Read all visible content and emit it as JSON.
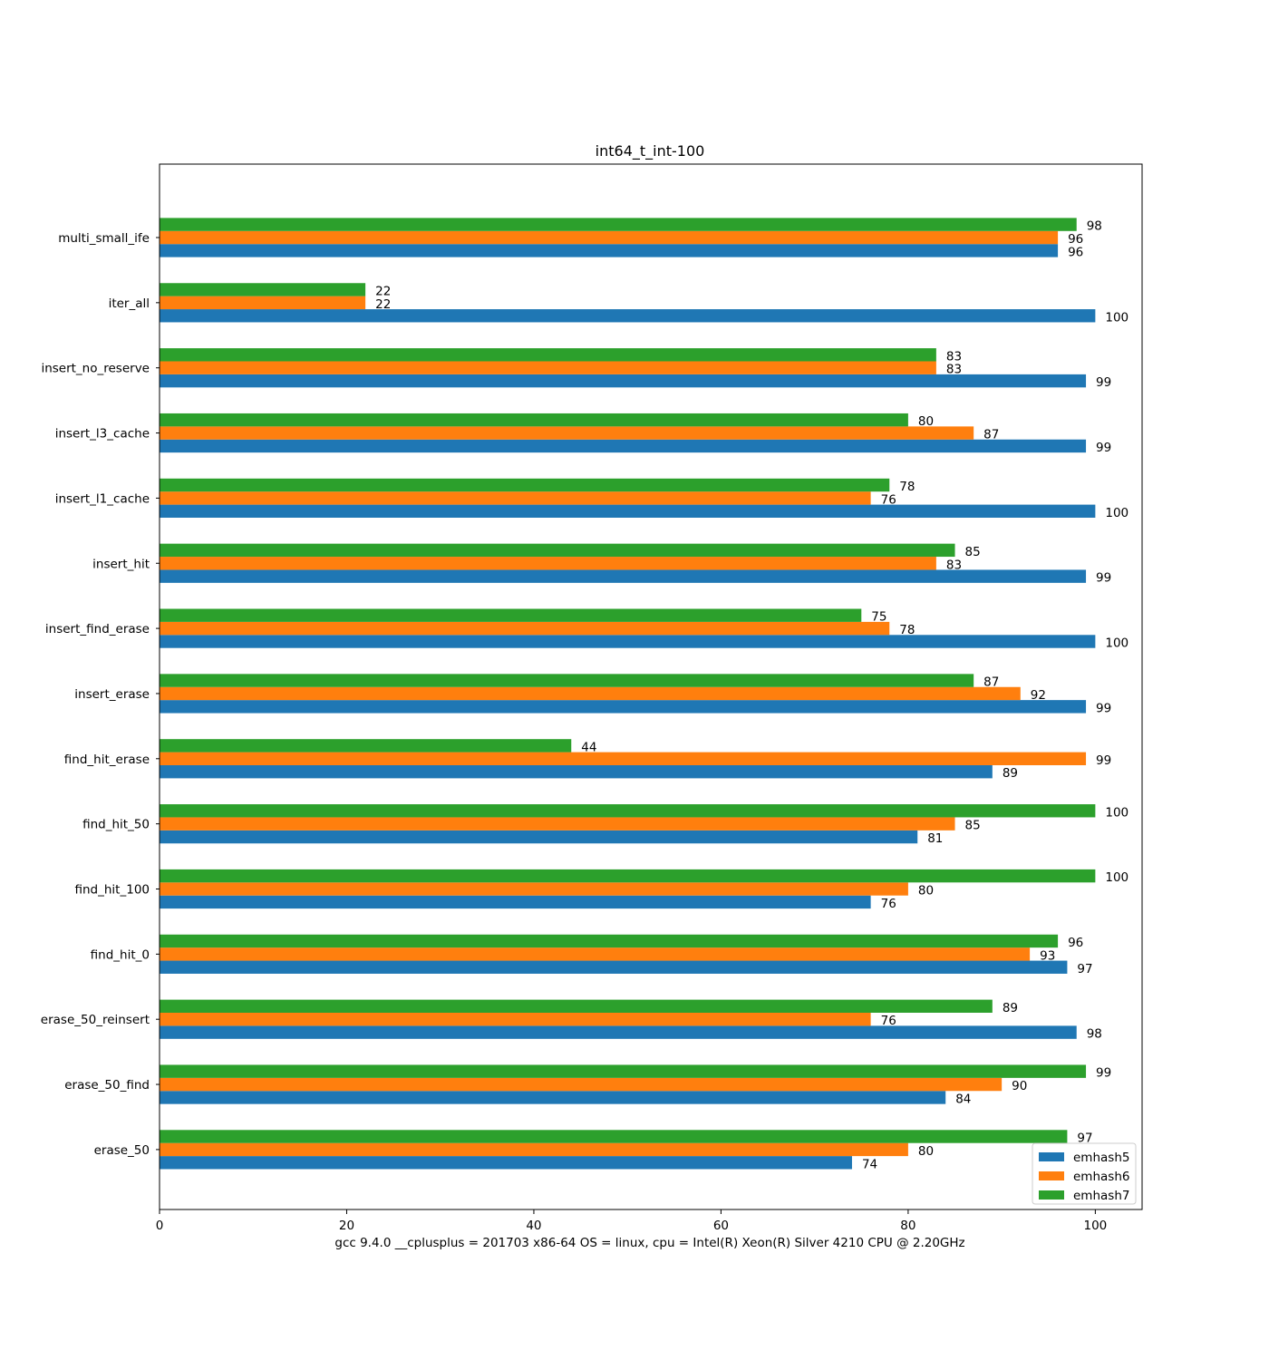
{
  "chart_data": {
    "type": "bar",
    "orientation": "horizontal",
    "title": "int64_t_int-100",
    "xlabel": "gcc 9.4.0 __cplusplus = 201703 x86-64 OS = linux, cpu = Intel(R) Xeon(R) Silver 4210 CPU @ 2.20GHz",
    "ylabel": "",
    "xlim": [
      0,
      105
    ],
    "xticks": [
      0,
      20,
      40,
      60,
      80,
      100
    ],
    "grid": false,
    "legend_position": "bottom-right",
    "categories": [
      "multi_small_ife",
      "iter_all",
      "insert_no_reserve",
      "insert_l3_cache",
      "insert_l1_cache",
      "insert_hit",
      "insert_find_erase",
      "insert_erase",
      "find_hit_erase",
      "find_hit_50",
      "find_hit_100",
      "find_hit_0",
      "erase_50_reinsert",
      "erase_50_find",
      "erase_50"
    ],
    "series": [
      {
        "name": "emhash5",
        "color": "#1f77b4",
        "values": [
          96,
          100,
          99,
          99,
          100,
          99,
          100,
          99,
          89,
          81,
          76,
          97,
          98,
          84,
          74
        ]
      },
      {
        "name": "emhash6",
        "color": "#ff7f0e",
        "values": [
          96,
          22,
          83,
          87,
          76,
          83,
          78,
          92,
          99,
          85,
          80,
          93,
          76,
          90,
          80
        ]
      },
      {
        "name": "emhash7",
        "color": "#2ca02c",
        "values": [
          98,
          22,
          83,
          80,
          78,
          85,
          75,
          87,
          44,
          100,
          100,
          96,
          89,
          99,
          97
        ]
      }
    ]
  }
}
